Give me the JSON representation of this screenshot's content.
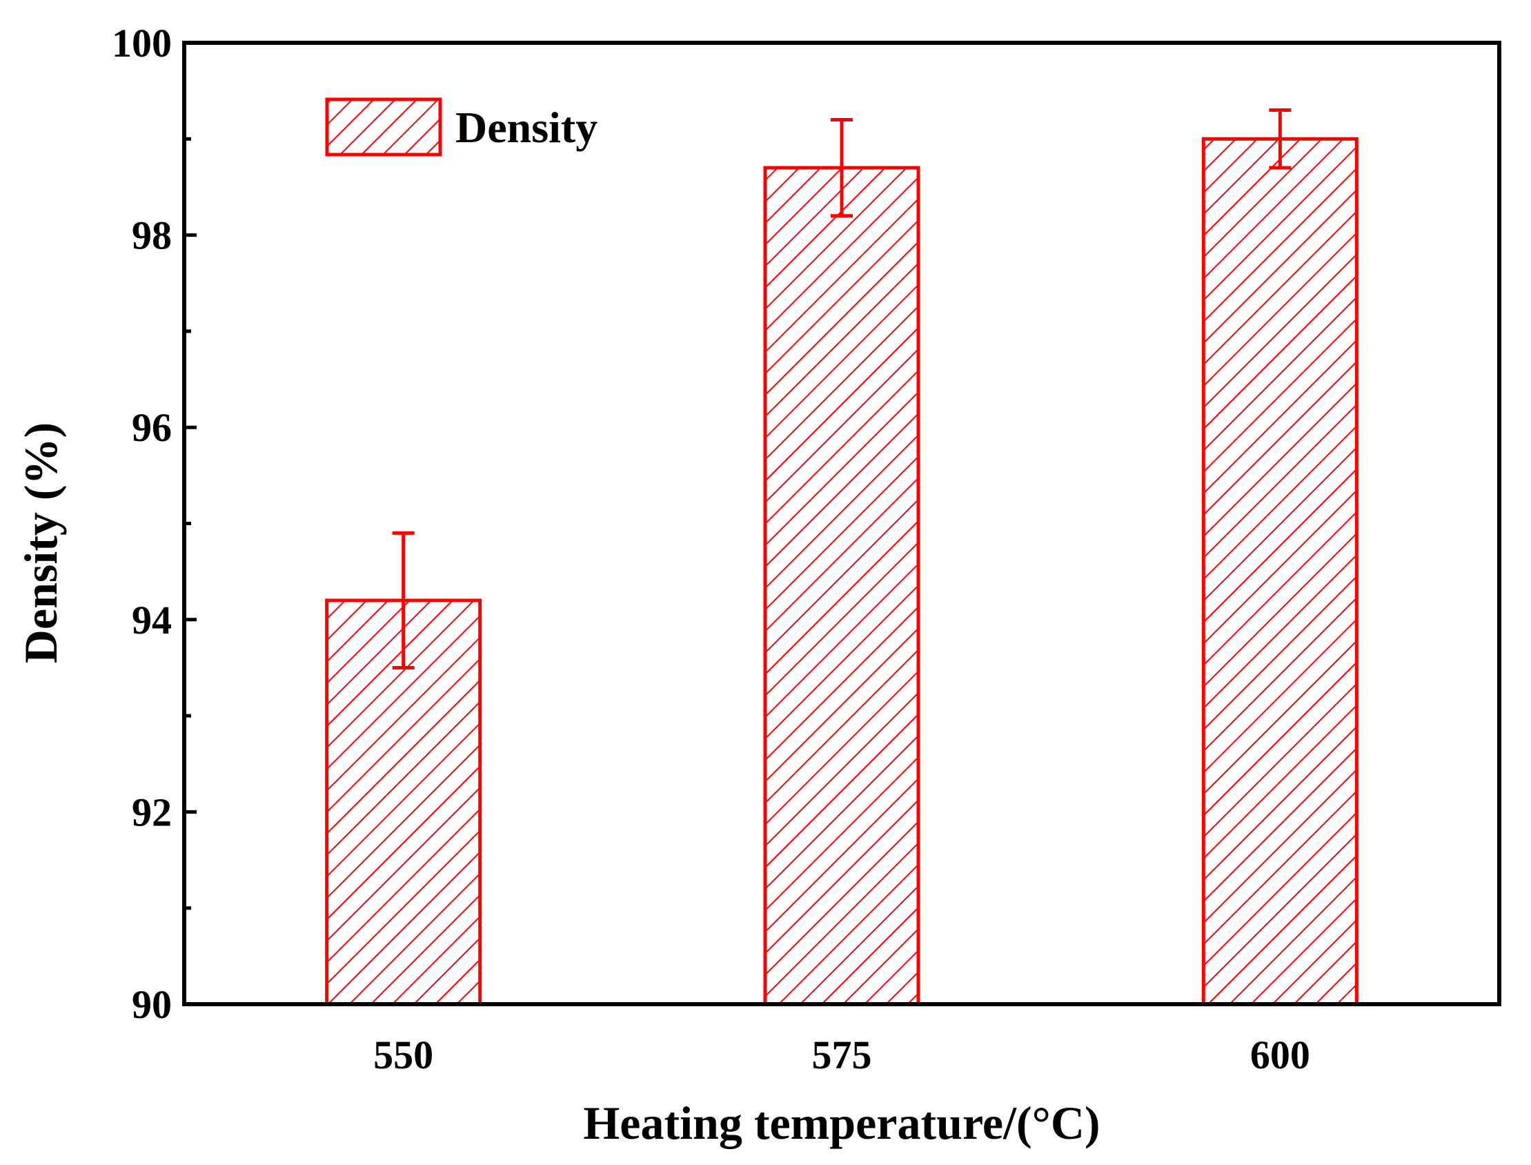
{
  "chart_data": {
    "type": "bar",
    "title": "",
    "xlabel": "Heating temperature/(°C)",
    "ylabel": "Density (%)",
    "categories": [
      "550",
      "575",
      "600"
    ],
    "series": [
      {
        "name": "Density",
        "values": [
          94.2,
          98.7,
          99.0
        ],
        "errors": [
          0.7,
          0.5,
          0.3
        ],
        "color": "#ff0000",
        "pattern": "diagonal-hatch"
      }
    ],
    "ylim": [
      90,
      100
    ],
    "yticks": [
      "90",
      "92",
      "94",
      "96",
      "98",
      "100"
    ],
    "yminor_step": 1,
    "grid": false,
    "legend_position": "top-left"
  }
}
